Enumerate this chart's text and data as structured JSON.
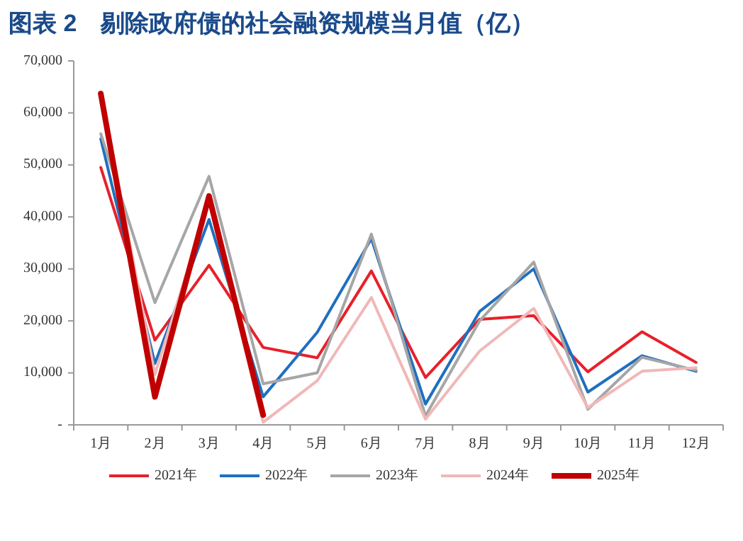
{
  "chart_data": {
    "type": "line",
    "title": "图表 2　剔除政府债的社会融资规模当月值（亿）",
    "categories": [
      "1月",
      "2月",
      "3月",
      "4月",
      "5月",
      "6月",
      "7月",
      "8月",
      "9月",
      "10月",
      "11月",
      "12月"
    ],
    "ylim": [
      0,
      70000
    ],
    "yticks": [
      {
        "value": 0,
        "label": "-"
      },
      {
        "value": 10000,
        "label": "10,000"
      },
      {
        "value": 20000,
        "label": "20,000"
      },
      {
        "value": 30000,
        "label": "30,000"
      },
      {
        "value": 40000,
        "label": "40,000"
      },
      {
        "value": 50000,
        "label": "50,000"
      },
      {
        "value": 60000,
        "label": "60,000"
      },
      {
        "value": 70000,
        "label": "70,000"
      }
    ],
    "grid": false,
    "legend": "bottom",
    "series": [
      {
        "name": "2021年",
        "color": "#e8202a",
        "values": [
          49500,
          16300,
          30700,
          14900,
          12900,
          29600,
          9100,
          20300,
          21000,
          10200,
          17900,
          12000
        ]
      },
      {
        "name": "2022年",
        "color": "#1f6fc0",
        "values": [
          55000,
          11800,
          39500,
          5400,
          17800,
          35800,
          4000,
          21800,
          30000,
          6300,
          13300,
          10300
        ]
      },
      {
        "name": "2023年",
        "color": "#a6a6a6",
        "values": [
          56000,
          23500,
          47800,
          7900,
          10000,
          36700,
          1700,
          20000,
          31300,
          3000,
          13000,
          10500
        ]
      },
      {
        "name": "2024年",
        "color": "#f0b8b8",
        "values": [
          64000,
          9700,
          43000,
          500,
          8500,
          24500,
          1100,
          14200,
          22400,
          3300,
          10300,
          11000
        ]
      },
      {
        "name": "2025年",
        "color": "#c00000",
        "values": [
          63700,
          5400,
          44000,
          1900,
          null,
          null,
          null,
          null,
          null,
          null,
          null,
          null
        ]
      }
    ]
  }
}
